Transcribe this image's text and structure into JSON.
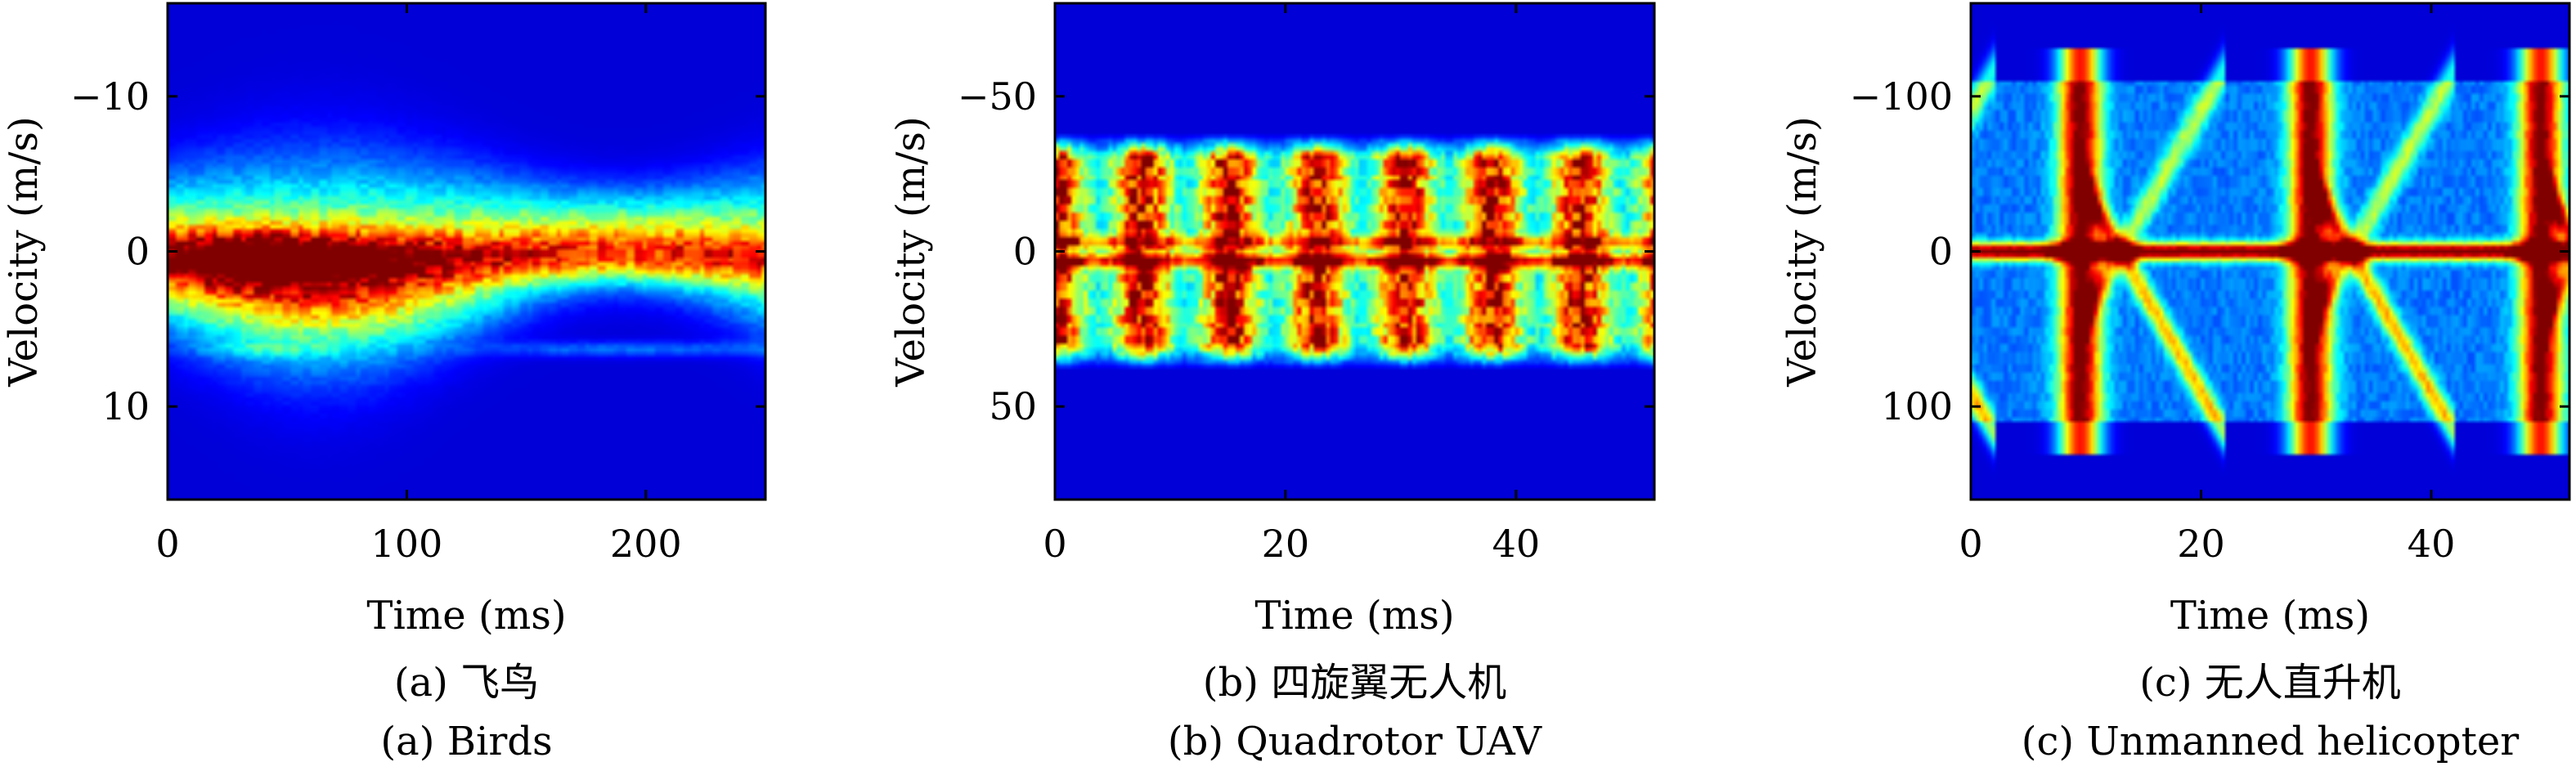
{
  "colors": {
    "colormap": [
      "#00008f",
      "#0000ff",
      "#0080ff",
      "#00ffff",
      "#80ff80",
      "#ffff00",
      "#ff8000",
      "#ff0000",
      "#800000"
    ],
    "background": "#00009c"
  },
  "chart_data": [
    {
      "type": "heatmap",
      "title": "",
      "caption_cn": "(a) 飞鸟",
      "caption_en": "(a) Birds",
      "xlabel": "Time (ms)",
      "ylabel": "Velocity (m/s)",
      "xlim": [
        0,
        250
      ],
      "ylim": [
        -16,
        16
      ],
      "y_reversed": true,
      "xticks": [
        0,
        100,
        200
      ],
      "xtick_labels": [
        "0",
        "100",
        "200"
      ],
      "yticks": [
        -10,
        0,
        10
      ],
      "ytick_labels": [
        "−10",
        "0",
        "10"
      ],
      "signature": "bird",
      "grid": false
    },
    {
      "type": "heatmap",
      "title": "",
      "caption_cn": "(b) 四旋翼无人机",
      "caption_en": "(b) Quadrotor UAV",
      "xlabel": "Time (ms)",
      "ylabel": "Velocity (m/s)",
      "xlim": [
        0,
        52
      ],
      "ylim": [
        -80,
        80
      ],
      "y_reversed": true,
      "xticks": [
        0,
        20,
        40
      ],
      "xtick_labels": [
        "0",
        "20",
        "40"
      ],
      "yticks": [
        -50,
        0,
        50
      ],
      "ytick_labels": [
        "−50",
        "0",
        "50"
      ],
      "signature": "quadrotor",
      "grid": false
    },
    {
      "type": "heatmap",
      "title": "",
      "caption_cn": "(c) 无人直升机",
      "caption_en": "(c) Unmanned helicopter",
      "xlabel": "Time (ms)",
      "ylabel": "Velocity (m/s)",
      "xlim": [
        0,
        52
      ],
      "ylim": [
        -160,
        160
      ],
      "y_reversed": true,
      "xticks": [
        0,
        20,
        40
      ],
      "xtick_labels": [
        "0",
        "20",
        "40"
      ],
      "yticks": [
        -100,
        0,
        100
      ],
      "ytick_labels": [
        "−100",
        "0",
        "100"
      ],
      "signature": "helicopter",
      "grid": false
    }
  ]
}
